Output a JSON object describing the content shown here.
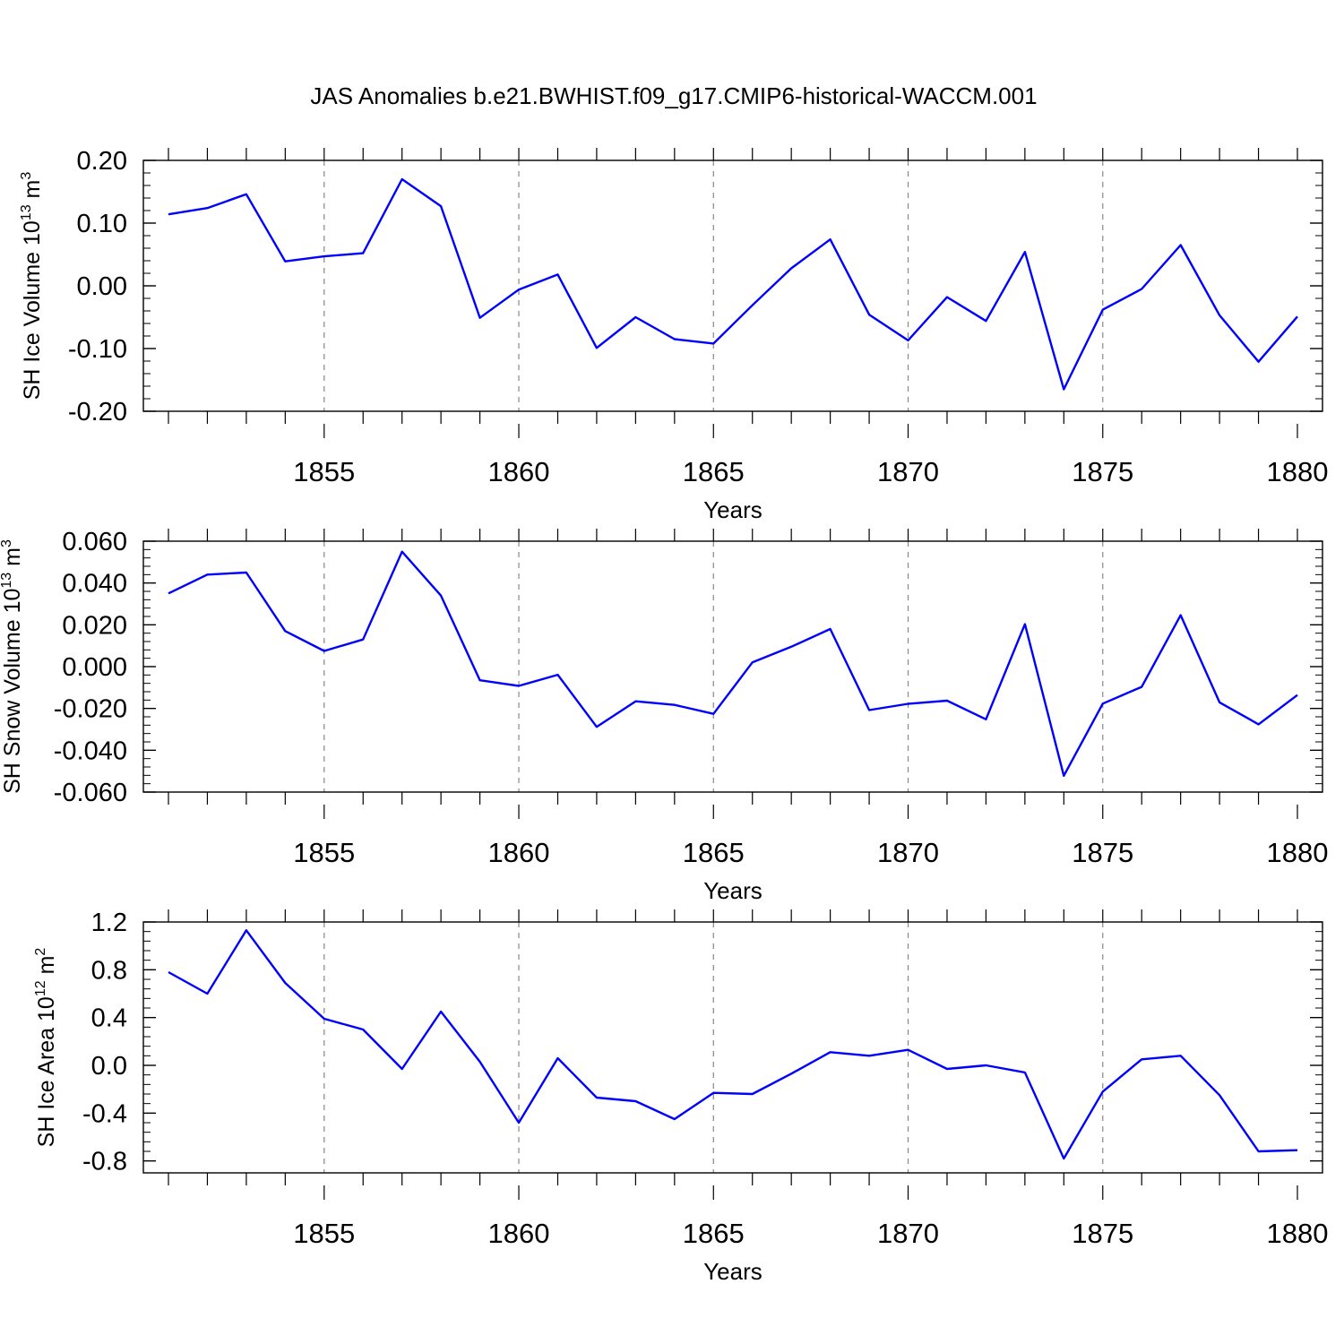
{
  "title": "JAS Anomalies b.e21.BWHIST.f09_g17.CMIP6-historical-WACCM.001",
  "colors": {
    "series": "#0000ff",
    "axis": "#000000",
    "grid": "#888888"
  },
  "chart_data": [
    {
      "type": "line",
      "title": "JAS Anomalies b.e21.BWHIST.f09_g17.CMIP6-historical-WACCM.001",
      "xlabel": "Years",
      "ylabel": {
        "text": "SH Ice Volume 10",
        "sup1": "13",
        "mid": " m",
        "sup2": "3"
      },
      "xlim": [
        1851,
        1880
      ],
      "ylim": [
        -0.2,
        0.2
      ],
      "yticks": [
        0.2,
        0.1,
        0.0,
        -0.1,
        -0.2
      ],
      "ytick_labels": [
        "0.20",
        "0.10",
        "0.00",
        "-0.10",
        "-0.20"
      ],
      "xticks": [
        1855,
        1860,
        1865,
        1870,
        1875,
        1880
      ],
      "xtick_labels": [
        "1855",
        "1860",
        "1865",
        "1870",
        "1875",
        "1880"
      ],
      "grid": "vertical dashed at major x ticks",
      "x": [
        1851,
        1852,
        1853,
        1854,
        1855,
        1856,
        1857,
        1858,
        1859,
        1860,
        1861,
        1862,
        1863,
        1864,
        1865,
        1866,
        1867,
        1868,
        1869,
        1870,
        1871,
        1872,
        1873,
        1874,
        1875,
        1876,
        1877,
        1878,
        1879,
        1880
      ],
      "series": [
        {
          "name": "SH Ice Volume",
          "values": [
            0.114,
            0.124,
            0.146,
            0.039,
            0.047,
            0.052,
            0.17,
            0.127,
            -0.051,
            -0.006,
            0.018,
            -0.099,
            -0.05,
            -0.085,
            -0.092,
            -0.031,
            0.028,
            0.074,
            -0.046,
            -0.087,
            -0.018,
            -0.056,
            0.054,
            -0.165,
            -0.038,
            -0.005,
            0.065,
            -0.047,
            -0.121,
            -0.049
          ]
        }
      ]
    },
    {
      "type": "line",
      "xlabel": "Years",
      "ylabel": {
        "text": "SH Snow Volume 10",
        "sup1": "13",
        "mid": " m",
        "sup2": "3"
      },
      "xlim": [
        1851,
        1880
      ],
      "ylim": [
        -0.06,
        0.06
      ],
      "yticks": [
        0.06,
        0.04,
        0.02,
        0.0,
        -0.02,
        -0.04,
        -0.06
      ],
      "ytick_labels": [
        "0.060",
        "0.040",
        "0.020",
        "0.000",
        "-0.020",
        "-0.040",
        "-0.060"
      ],
      "xticks": [
        1855,
        1860,
        1865,
        1870,
        1875,
        1880
      ],
      "xtick_labels": [
        "1855",
        "1860",
        "1865",
        "1870",
        "1875",
        "1880"
      ],
      "grid": "vertical dashed at major x ticks",
      "x": [
        1851,
        1852,
        1853,
        1854,
        1855,
        1856,
        1857,
        1858,
        1859,
        1860,
        1861,
        1862,
        1863,
        1864,
        1865,
        1866,
        1867,
        1868,
        1869,
        1870,
        1871,
        1872,
        1873,
        1874,
        1875,
        1876,
        1877,
        1878,
        1879,
        1880
      ],
      "series": [
        {
          "name": "SH Snow Volume",
          "values": [
            0.035,
            0.044,
            0.045,
            0.017,
            0.0075,
            0.013,
            0.055,
            0.034,
            -0.0065,
            -0.0092,
            -0.0039,
            -0.0288,
            -0.0166,
            -0.0183,
            -0.0226,
            0.002,
            0.0095,
            0.018,
            -0.0208,
            -0.0178,
            -0.0163,
            -0.0252,
            0.0203,
            -0.0522,
            -0.0177,
            -0.0097,
            0.0246,
            -0.0171,
            -0.0276,
            -0.0136
          ]
        }
      ]
    },
    {
      "type": "line",
      "xlabel": "Years",
      "ylabel": {
        "text": "SH Ice Area 10",
        "sup1": "12",
        "mid": " m",
        "sup2": "2"
      },
      "xlim": [
        1851,
        1880
      ],
      "ylim": [
        -0.9,
        1.2
      ],
      "yticks": [
        1.2,
        0.8,
        0.4,
        0.0,
        -0.4,
        -0.8
      ],
      "ytick_labels": [
        "1.2",
        "0.8",
        "0.4",
        "0.0",
        "-0.4",
        "-0.8"
      ],
      "xticks": [
        1855,
        1860,
        1865,
        1870,
        1875,
        1880
      ],
      "xtick_labels": [
        "1855",
        "1860",
        "1865",
        "1870",
        "1875",
        "1880"
      ],
      "grid": "vertical dashed at major x ticks",
      "x": [
        1851,
        1852,
        1853,
        1854,
        1855,
        1856,
        1857,
        1858,
        1859,
        1860,
        1861,
        1862,
        1863,
        1864,
        1865,
        1866,
        1867,
        1868,
        1869,
        1870,
        1871,
        1872,
        1873,
        1874,
        1875,
        1876,
        1877,
        1878,
        1879,
        1880
      ],
      "series": [
        {
          "name": "SH Ice Area",
          "values": [
            0.78,
            0.6,
            1.13,
            0.69,
            0.39,
            0.3,
            -0.03,
            0.45,
            0.03,
            -0.48,
            0.06,
            -0.27,
            -0.3,
            -0.45,
            -0.23,
            -0.24,
            -0.07,
            0.11,
            0.08,
            0.13,
            -0.03,
            0.0,
            -0.06,
            -0.78,
            -0.22,
            0.05,
            0.08,
            -0.25,
            -0.72,
            -0.71
          ]
        }
      ]
    }
  ]
}
